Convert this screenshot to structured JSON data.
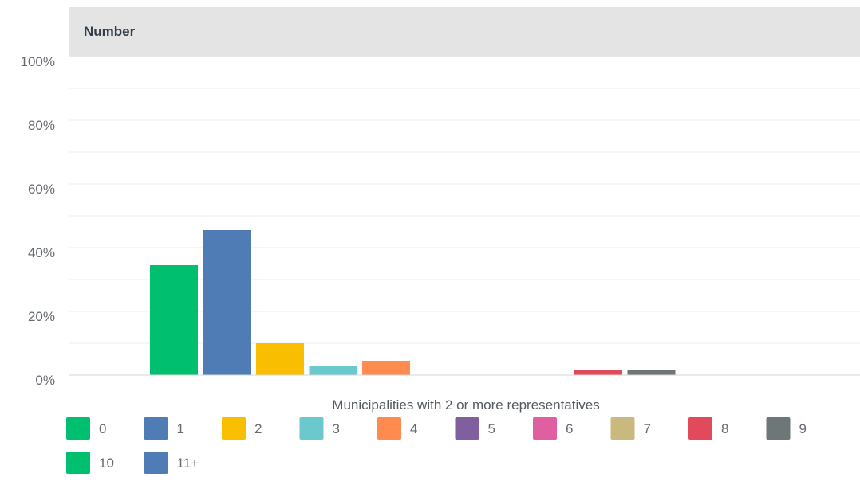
{
  "chart_data": {
    "type": "bar",
    "title": "",
    "panel_header": "Number",
    "xlabel": "Municipalities with 2 or more representatives",
    "ylabel": "",
    "ylim": [
      0,
      100
    ],
    "yticks": [
      "0%",
      "20%",
      "40%",
      "60%",
      "80%",
      "100%"
    ],
    "grid": true,
    "legend_position": "bottom",
    "categories": [
      "0",
      "1",
      "2",
      "3",
      "4",
      "5",
      "6",
      "7",
      "8",
      "9",
      "10",
      "11+"
    ],
    "values": [
      34.5,
      45.5,
      10,
      3,
      4.5,
      0,
      0,
      0,
      1.5,
      1.5,
      0,
      0
    ],
    "colors": [
      "#00bf6f",
      "#507cb6",
      "#f9be00",
      "#6bc8cd",
      "#ff8b4f",
      "#7f5f9e",
      "#e05fa0",
      "#c9b97e",
      "#e04a5b",
      "#6f7678",
      "#00bf6f",
      "#507cb6"
    ]
  }
}
